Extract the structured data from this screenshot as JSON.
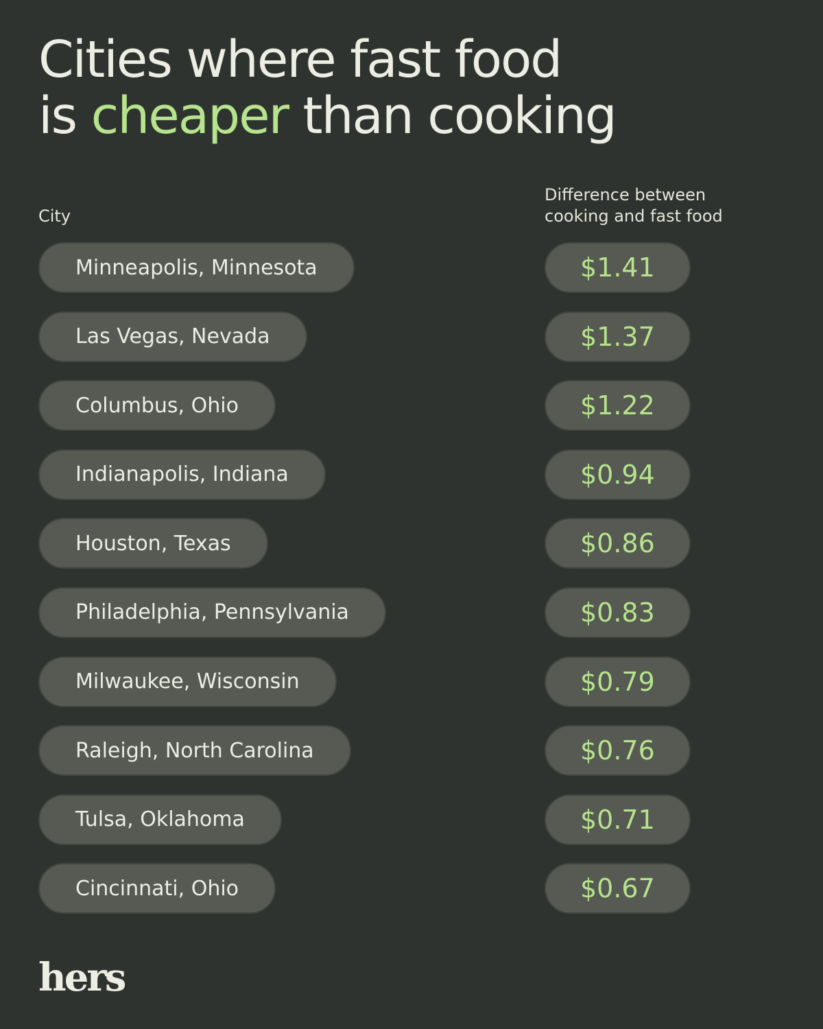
{
  "header": {
    "title_line1": "Cities where fast food",
    "title_line2_prefix": "is ",
    "title_line2_accent": "cheaper",
    "title_line2_suffix": " than cooking"
  },
  "columns": {
    "city": "City",
    "difference_line1": "Difference between",
    "difference_line2": "cooking and fast food"
  },
  "rows": [
    {
      "city": "Minneapolis, Minnesota",
      "difference": "$1.41"
    },
    {
      "city": "Las Vegas, Nevada",
      "difference": "$1.37"
    },
    {
      "city": "Columbus, Ohio",
      "difference": "$1.22"
    },
    {
      "city": "Indianapolis, Indiana",
      "difference": "$0.94"
    },
    {
      "city": "Houston, Texas",
      "difference": "$0.86"
    },
    {
      "city": "Philadelphia, Pennsylvania",
      "difference": "$0.83"
    },
    {
      "city": "Milwaukee, Wisconsin",
      "difference": "$0.79"
    },
    {
      "city": "Raleigh, North Carolina",
      "difference": "$0.76"
    },
    {
      "city": "Tulsa, Oklahoma",
      "difference": "$0.71"
    },
    {
      "city": "Cincinnati, Ohio",
      "difference": "$0.67"
    }
  ],
  "brand": {
    "logo_text": "hers"
  },
  "colors": {
    "background": "#2f332f",
    "pill": "#565a52",
    "accent": "#b6e38d",
    "text": "#ecede3"
  }
}
